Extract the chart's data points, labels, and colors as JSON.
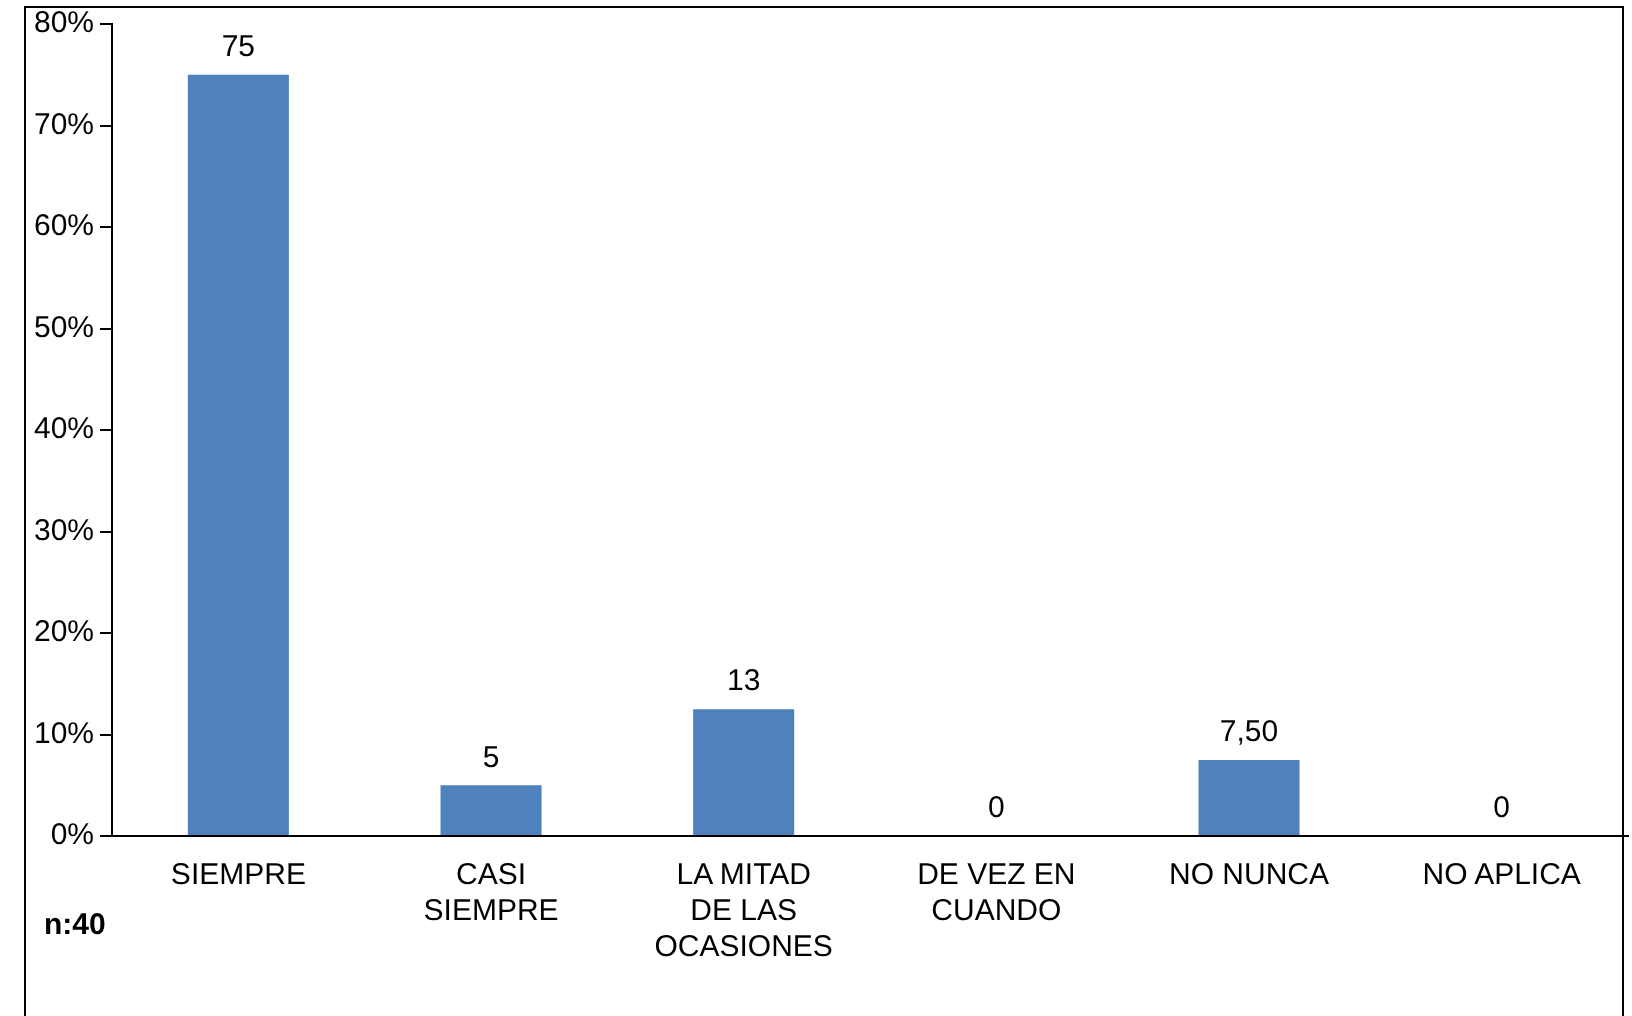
{
  "chart_data": {
    "type": "bar",
    "categories": [
      "SIEMPRE",
      "CASI SIEMPRE",
      "LA MITAD DE LAS OCASIONES",
      "DE VEZ EN CUANDO",
      "NO NUNCA",
      "NO APLICA"
    ],
    "values": [
      75,
      5,
      12.5,
      0,
      7.5,
      0
    ],
    "value_labels": [
      "75",
      "5",
      "13",
      "0",
      "7,50",
      "0"
    ],
    "color": "#4f81bd",
    "ylim": [
      0,
      80
    ],
    "yticks": [
      {
        "value": 0,
        "label": "0%"
      },
      {
        "value": 10,
        "label": "10%"
      },
      {
        "value": 20,
        "label": "20%"
      },
      {
        "value": 30,
        "label": "30%"
      },
      {
        "value": 40,
        "label": "40%"
      },
      {
        "value": 50,
        "label": "50%"
      },
      {
        "value": 60,
        "label": "60%"
      },
      {
        "value": 70,
        "label": "70%"
      },
      {
        "value": 80,
        "label": "80%"
      }
    ],
    "annotations": [
      "n:40"
    ],
    "grid": false,
    "legend": false
  }
}
